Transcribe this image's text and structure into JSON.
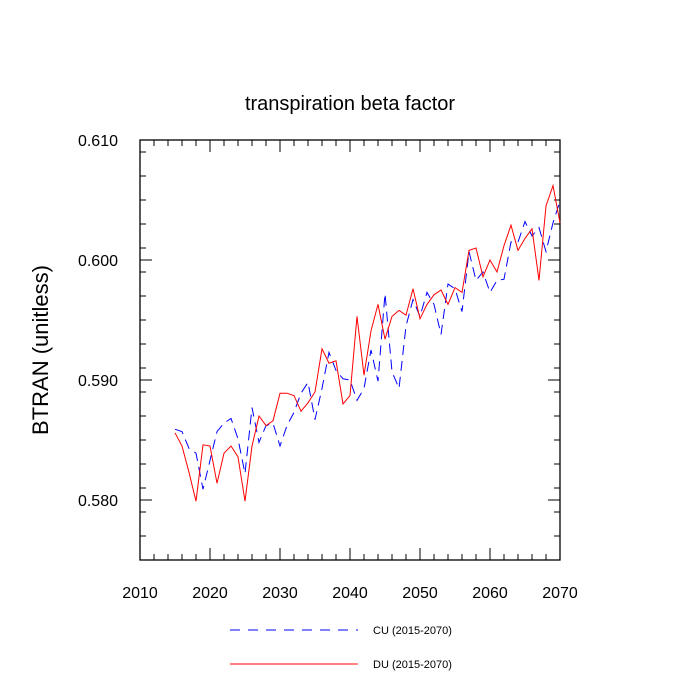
{
  "chart_data": {
    "type": "line",
    "title": "transpiration beta factor",
    "xlabel": "",
    "ylabel": "BTRAN  (unitless)",
    "xlim": [
      2010,
      2070
    ],
    "ylim": [
      0.575,
      0.61
    ],
    "xticks": [
      2010,
      2020,
      2030,
      2040,
      2050,
      2060,
      2070
    ],
    "xtick_labels": [
      "2010",
      "2020",
      "2030",
      "2040",
      "2050",
      "2060",
      "2070"
    ],
    "yticks": [
      0.58,
      0.59,
      0.6,
      0.61
    ],
    "ytick_labels": [
      "0.580",
      "0.590",
      "0.600",
      "0.610"
    ],
    "grid": false,
    "legend_position": "bottom",
    "x": [
      2015,
      2016,
      2017,
      2018,
      2019,
      2020,
      2021,
      2022,
      2023,
      2024,
      2025,
      2026,
      2027,
      2028,
      2029,
      2030,
      2031,
      2032,
      2033,
      2034,
      2035,
      2036,
      2037,
      2038,
      2039,
      2040,
      2041,
      2042,
      2043,
      2044,
      2045,
      2046,
      2047,
      2048,
      2049,
      2050,
      2051,
      2052,
      2053,
      2054,
      2055,
      2056,
      2057,
      2058,
      2059,
      2060,
      2061,
      2062,
      2063,
      2064,
      2065,
      2066,
      2067,
      2068,
      2069,
      2070
    ],
    "series": [
      {
        "name": "CU (2015-2070)",
        "color": "#0000ff",
        "dash": "dashed",
        "values": [
          0.5859,
          0.5857,
          0.5843,
          0.5839,
          0.5809,
          0.5833,
          0.5857,
          0.5864,
          0.5868,
          0.5851,
          0.5822,
          0.5877,
          0.5848,
          0.5862,
          0.5864,
          0.5845,
          0.5862,
          0.5873,
          0.5889,
          0.5898,
          0.5867,
          0.5893,
          0.5923,
          0.5908,
          0.5901,
          0.59,
          0.5883,
          0.5893,
          0.5925,
          0.5899,
          0.5972,
          0.5907,
          0.5893,
          0.5945,
          0.5967,
          0.5953,
          0.5973,
          0.5963,
          0.5938,
          0.598,
          0.5976,
          0.5957,
          0.6007,
          0.5983,
          0.599,
          0.5973,
          0.5983,
          0.5984,
          0.6015,
          0.6015,
          0.6032,
          0.602,
          0.6027,
          0.6007,
          0.6031,
          0.6049
        ]
      },
      {
        "name": "DU (2015-2070)",
        "color": "#ff0000",
        "dash": "solid",
        "values": [
          0.5856,
          0.5845,
          0.5823,
          0.5799,
          0.5846,
          0.5845,
          0.5814,
          0.5839,
          0.5845,
          0.5836,
          0.5799,
          0.5845,
          0.587,
          0.5862,
          0.5866,
          0.5889,
          0.5889,
          0.5887,
          0.5874,
          0.5881,
          0.589,
          0.5926,
          0.5914,
          0.5916,
          0.588,
          0.5887,
          0.5953,
          0.5904,
          0.5941,
          0.5963,
          0.5934,
          0.5953,
          0.5958,
          0.5954,
          0.5976,
          0.5951,
          0.5963,
          0.5971,
          0.5975,
          0.5963,
          0.5977,
          0.5973,
          0.6008,
          0.601,
          0.5986,
          0.6,
          0.599,
          0.6012,
          0.6029,
          0.6008,
          0.6018,
          0.6026,
          0.5983,
          0.6045,
          0.6062,
          0.6031
        ]
      }
    ]
  }
}
